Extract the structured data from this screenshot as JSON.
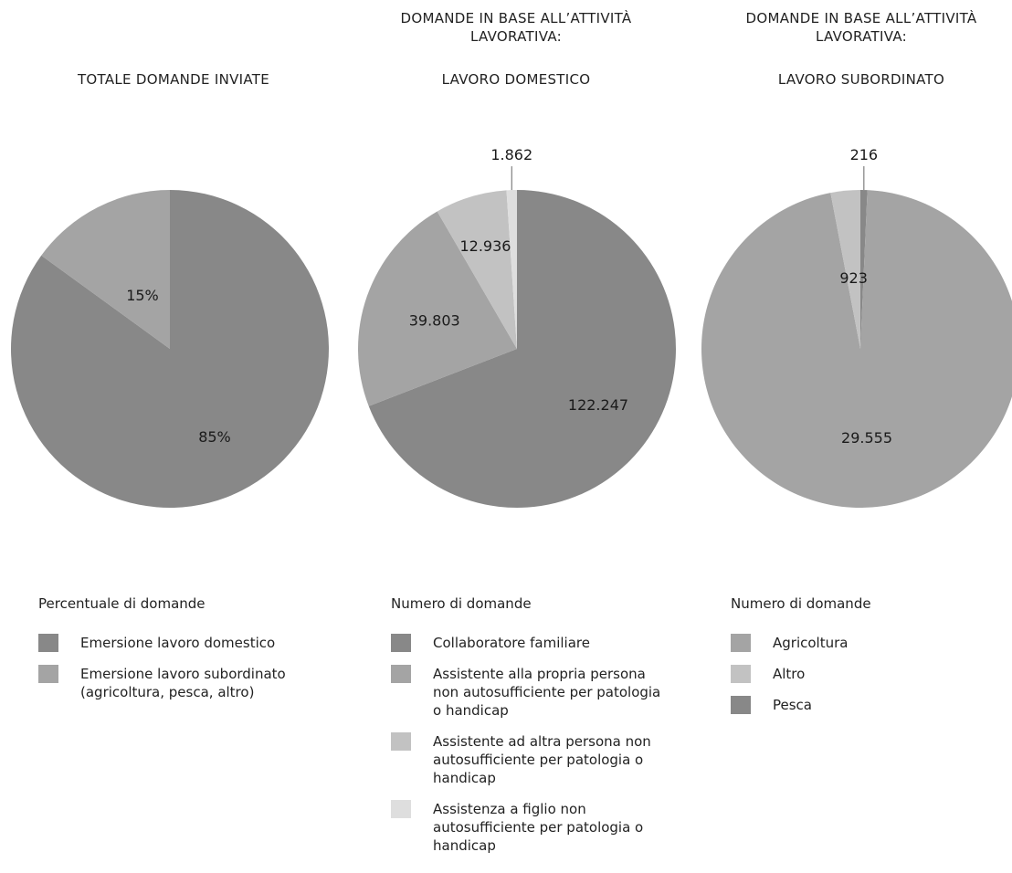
{
  "chart_data": [
    {
      "type": "pie",
      "heading": "",
      "title": "TOTALE DOMANDE INVIATE",
      "legend_title": "Percentuale di domande",
      "slices": [
        {
          "label": "Emersione lavoro domestico",
          "value": 85,
          "display": "85%",
          "color": "#888888"
        },
        {
          "label": "Emersione lavoro subordinato (agricoltura, pesca, altro)",
          "value": 15,
          "display": "15%",
          "color": "#a4a4a4"
        }
      ],
      "legend": [
        {
          "label": "Emersione lavoro domestico",
          "color": "#888888"
        },
        {
          "label": "Emersione lavoro subordinato (agricoltura, pesca, altro)",
          "color": "#a4a4a4"
        }
      ]
    },
    {
      "type": "pie",
      "heading": "DOMANDE IN BASE ALL’ATTIVITÀ LAVORATIVA:",
      "title": "LAVORO DOMESTICO",
      "legend_title": "Numero di domande",
      "slices": [
        {
          "label": "Collaboratore familiare",
          "value": 122247,
          "display": "122.247",
          "color": "#888888"
        },
        {
          "label": "Assistente alla propria persona non autosufficiente per patologia o handicap",
          "value": 39803,
          "display": "39.803",
          "color": "#a4a4a4"
        },
        {
          "label": "Assistente ad altra persona non autosufficiente per patologia o handicap",
          "value": 12936,
          "display": "12.936",
          "color": "#c2c2c2"
        },
        {
          "label": "Assistenza a figlio non autosufficiente per patologia o handicap",
          "value": 1862,
          "display": "1.862",
          "color": "#dedede"
        }
      ],
      "legend": [
        {
          "label": "Collaboratore familiare",
          "color": "#888888"
        },
        {
          "label": "Assistente alla propria persona non autosufficiente per patologia o handicap",
          "color": "#a4a4a4"
        },
        {
          "label": "Assistente ad altra persona non autosufficiente per patologia o handicap",
          "color": "#c2c2c2"
        },
        {
          "label": "Assistenza a figlio non autosufficiente per patologia o handicap",
          "color": "#dedede"
        }
      ]
    },
    {
      "type": "pie",
      "heading": "DOMANDE IN BASE ALL’ATTIVITÀ LAVORATIVA:",
      "title": "LAVORO SUBORDINATO",
      "legend_title": "Numero di domande",
      "slices": [
        {
          "label": "Pesca",
          "value": 216,
          "display": "216",
          "color": "#888888"
        },
        {
          "label": "Agricoltura",
          "value": 29555,
          "display": "29.555",
          "color": "#a4a4a4"
        },
        {
          "label": "Altro",
          "value": 923,
          "display": "923",
          "color": "#c2c2c2"
        }
      ],
      "legend": [
        {
          "label": "Agricoltura",
          "color": "#a4a4a4"
        },
        {
          "label": "Altro",
          "color": "#c2c2c2"
        },
        {
          "label": "Pesca",
          "color": "#888888"
        }
      ]
    }
  ]
}
